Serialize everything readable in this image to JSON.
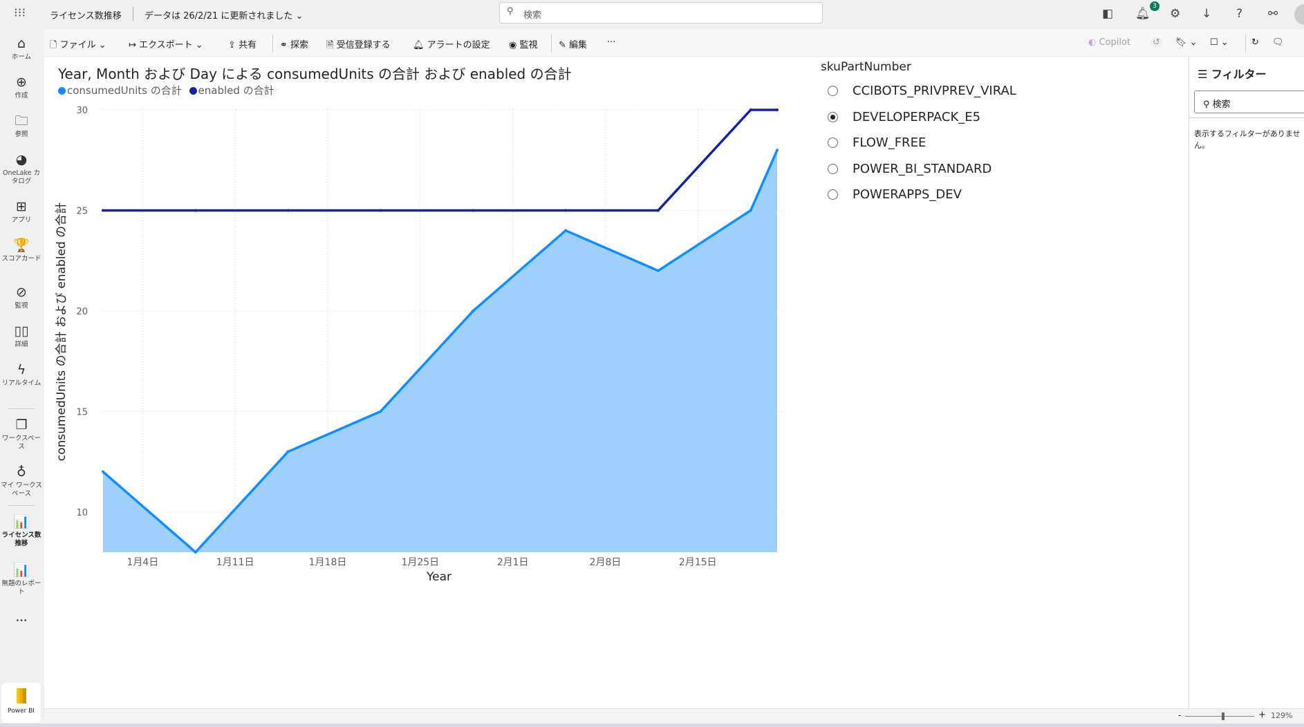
{
  "topbar": {
    "report_name": "ライセンス数推移",
    "data_updated": "データは 26/2/21 に更新されました",
    "search_placeholder": "検索",
    "notification_count": "3"
  },
  "nav": {
    "items": [
      {
        "label": "ホーム",
        "icon": "home-icon",
        "glyph": "⌂"
      },
      {
        "label": "作成",
        "icon": "create-icon",
        "glyph": "⊕"
      },
      {
        "label": "参照",
        "icon": "folder-icon",
        "glyph": "🗀"
      },
      {
        "label": "OneLake カタログ",
        "icon": "onelake-icon",
        "glyph": "◕"
      },
      {
        "label": "アプリ",
        "icon": "apps-icon",
        "glyph": "⊞"
      },
      {
        "label": "スコアカード",
        "icon": "trophy-icon",
        "glyph": "🏆"
      },
      {
        "label": "監視",
        "icon": "monitor-icon",
        "glyph": "⊘"
      },
      {
        "label": "詳細",
        "icon": "book-icon",
        "glyph": "▯▯"
      },
      {
        "label": "リアルタイム",
        "icon": "lightning-icon",
        "glyph": "ϟ"
      },
      {
        "label": "ワークスペース",
        "icon": "workspaces-icon",
        "glyph": "❐"
      },
      {
        "label": "マイ ワークスペース",
        "icon": "person-icon",
        "glyph": "♁"
      },
      {
        "label": "ライセンス数推移",
        "icon": "report-icon",
        "glyph": "📊"
      },
      {
        "label": "無題のレポート",
        "icon": "report-icon",
        "glyph": "📊"
      }
    ],
    "more": "•••",
    "product": "Power BI"
  },
  "toolbar": {
    "file": "ファイル",
    "export": "エクスポート",
    "share": "共有",
    "explore": "探索",
    "subscribe": "受信登録する",
    "alert": "アラートの設定",
    "monitor": "監視",
    "edit": "編集",
    "more": "···",
    "copilot": "Copilot"
  },
  "visual": {
    "title": "Year, Month および Day による consumedUnits の合計 および enabled の合計"
  },
  "chart_data": {
    "type": "area",
    "title": "Year, Month および Day による consumedUnits の合計 および enabled の合計",
    "xlabel": "Year",
    "ylabel": "consumedUnits の合計 および enabled の合計",
    "x": [
      "1/1",
      "1/8",
      "1/15",
      "1/22",
      "1/29",
      "2/5",
      "2/12",
      "2/19",
      "2/21"
    ],
    "x_ticks": [
      "1月4日",
      "1月11日",
      "1月18日",
      "1月25日",
      "2月1日",
      "2月8日",
      "2月15日"
    ],
    "y_ticks": [
      10,
      15,
      20,
      25,
      30
    ],
    "ylim": [
      8,
      30
    ],
    "grid": true,
    "legend_position": "top-left",
    "series": [
      {
        "name": "consumedUnits の合計",
        "color": "#118dff",
        "fill": "#9fd0fd",
        "values": [
          12,
          8,
          13,
          15,
          20,
          24,
          22,
          25,
          28
        ]
      },
      {
        "name": "enabled の合計",
        "color": "#12239e",
        "values": [
          25,
          25,
          25,
          25,
          25,
          25,
          25,
          30,
          30
        ]
      }
    ]
  },
  "slicer": {
    "header": "skuPartNumber",
    "items": [
      "CCIBOTS_PRIVPREV_VIRAL",
      "DEVELOPERPACK_E5",
      "FLOW_FREE",
      "POWER_BI_STANDARD",
      "POWERAPPS_DEV"
    ],
    "selected": "DEVELOPERPACK_E5"
  },
  "filters": {
    "title": "フィルター",
    "search_placeholder": "検索",
    "empty_message": "表示するフィルターがありません。"
  },
  "status": {
    "zoom": "129%",
    "zoom_fraction": 0.55
  }
}
